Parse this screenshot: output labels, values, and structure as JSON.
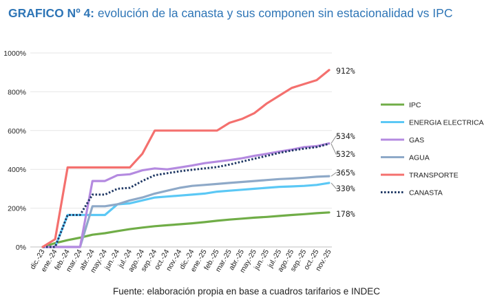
{
  "title_bold": "GRAFICO Nº 4:",
  "title_rest": " evolución de la canasta y sus componen sin estacionalidad vs IPC",
  "source": "Fuente: elaboración propia en base a cuadros tarifarios e INDEC",
  "chart_data": {
    "type": "line",
    "ylim": [
      0,
      1000
    ],
    "yticks": [
      0,
      200,
      400,
      600,
      800,
      1000
    ],
    "ytick_labels": [
      "0%",
      "200%",
      "400%",
      "600%",
      "800%",
      "1000%"
    ],
    "categories": [
      "dic.-23",
      "ene.-24",
      "feb.-24",
      "mar.-24",
      "abr.-24",
      "may.-24",
      "jun.-24",
      "jul.-24",
      "ago.-24",
      "sep.-24",
      "oct.-24",
      "nov.-24",
      "dic.-24",
      "ene.-25",
      "feb.-25",
      "mar.-25",
      "abr.-25",
      "may.-25",
      "jun.-25",
      "jul.-25",
      "ago.-25",
      "sep.-25",
      "oct.-25",
      "nov.-25"
    ],
    "series": [
      {
        "name": "IPC",
        "color": "#70ad47",
        "dash": false,
        "values": [
          0,
          20,
          35,
          48,
          63,
          71,
          82,
          92,
          100,
          107,
          112,
          117,
          122,
          128,
          135,
          141,
          146,
          151,
          155,
          160,
          165,
          169,
          174,
          178
        ],
        "end_label": "178%"
      },
      {
        "name": "ENERGIA ELECTRICA",
        "color": "#5bc8f5",
        "dash": false,
        "values": [
          0,
          0,
          165,
          165,
          165,
          165,
          220,
          225,
          240,
          255,
          260,
          265,
          270,
          275,
          285,
          290,
          295,
          300,
          305,
          310,
          312,
          315,
          320,
          330
        ],
        "end_label": "330%"
      },
      {
        "name": "GAS",
        "color": "#b48ae0",
        "dash": false,
        "values": [
          0,
          0,
          0,
          0,
          340,
          340,
          370,
          375,
          395,
          405,
          400,
          410,
          420,
          432,
          440,
          448,
          457,
          470,
          480,
          492,
          502,
          515,
          520,
          534
        ],
        "end_label": "534%"
      },
      {
        "name": "AGUA",
        "color": "#8ea9c8",
        "dash": false,
        "values": [
          0,
          0,
          0,
          0,
          210,
          210,
          220,
          240,
          255,
          275,
          290,
          305,
          315,
          320,
          325,
          330,
          335,
          340,
          345,
          350,
          353,
          357,
          362,
          365
        ],
        "end_label": "365%"
      },
      {
        "name": "TRANSPORTE",
        "color": "#f4706e",
        "dash": false,
        "values": [
          0,
          40,
          410,
          410,
          410,
          410,
          410,
          410,
          480,
          600,
          600,
          600,
          600,
          600,
          600,
          640,
          660,
          690,
          740,
          780,
          820,
          840,
          860,
          912
        ],
        "end_label": "912%"
      },
      {
        "name": "CANASTA",
        "color": "#1f3864",
        "dash": true,
        "values": [
          0,
          0,
          165,
          165,
          270,
          270,
          300,
          305,
          340,
          370,
          380,
          390,
          398,
          405,
          412,
          425,
          440,
          455,
          470,
          485,
          497,
          507,
          515,
          532
        ],
        "end_label": "532%"
      }
    ]
  }
}
